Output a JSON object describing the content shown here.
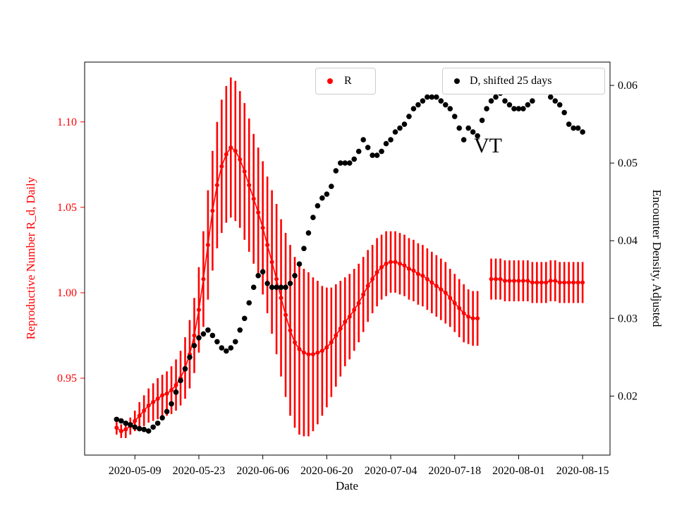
{
  "chart_data": {
    "type": "scatter",
    "title": "",
    "xlabel": "Date",
    "left_ylabel": "Reproductive Number R_d, Daily",
    "right_ylabel": "Encounter Density, Adjusted",
    "left_axis_color": "#ff0000",
    "right_axis_color": "#000000",
    "grid": false,
    "legend_position": "top",
    "annotations": [
      {
        "text": "VT"
      }
    ],
    "x_range": [
      "2020-04-28",
      "2020-08-21"
    ],
    "left_range": [
      0.905,
      1.135
    ],
    "right_range": [
      0.0124,
      0.063
    ],
    "x_ticks": [
      "2020-05-09",
      "2020-05-23",
      "2020-06-06",
      "2020-06-20",
      "2020-07-04",
      "2020-07-18",
      "2020-08-01",
      "2020-08-15"
    ],
    "left_ticks": [
      "0.95",
      "1.00",
      "1.05",
      "1.10"
    ],
    "right_ticks": [
      "0.02",
      "0.03",
      "0.04",
      "0.05",
      "0.06"
    ],
    "legend": [
      {
        "label": "R",
        "color": "#ff0000"
      },
      {
        "label": "D, shifted 25 days",
        "color": "#000000"
      }
    ],
    "dates": [
      "2020-05-05",
      "2020-05-06",
      "2020-05-07",
      "2020-05-08",
      "2020-05-09",
      "2020-05-10",
      "2020-05-11",
      "2020-05-12",
      "2020-05-13",
      "2020-05-14",
      "2020-05-15",
      "2020-05-16",
      "2020-05-17",
      "2020-05-18",
      "2020-05-19",
      "2020-05-20",
      "2020-05-21",
      "2020-05-22",
      "2020-05-23",
      "2020-05-24",
      "2020-05-25",
      "2020-05-26",
      "2020-05-27",
      "2020-05-28",
      "2020-05-29",
      "2020-05-30",
      "2020-05-31",
      "2020-06-01",
      "2020-06-02",
      "2020-06-03",
      "2020-06-04",
      "2020-06-05",
      "2020-06-06",
      "2020-06-07",
      "2020-06-08",
      "2020-06-09",
      "2020-06-10",
      "2020-06-11",
      "2020-06-12",
      "2020-06-13",
      "2020-06-14",
      "2020-06-15",
      "2020-06-16",
      "2020-06-17",
      "2020-06-18",
      "2020-06-19",
      "2020-06-20",
      "2020-06-21",
      "2020-06-22",
      "2020-06-23",
      "2020-06-24",
      "2020-06-25",
      "2020-06-26",
      "2020-06-27",
      "2020-06-28",
      "2020-06-29",
      "2020-06-30",
      "2020-07-01",
      "2020-07-02",
      "2020-07-03",
      "2020-07-04",
      "2020-07-05",
      "2020-07-06",
      "2020-07-07",
      "2020-07-08",
      "2020-07-09",
      "2020-07-10",
      "2020-07-11",
      "2020-07-12",
      "2020-07-13",
      "2020-07-14",
      "2020-07-15",
      "2020-07-16",
      "2020-07-17",
      "2020-07-18",
      "2020-07-19",
      "2020-07-20",
      "2020-07-21",
      "2020-07-22",
      "2020-07-23",
      "2020-07-24",
      "2020-07-25",
      "2020-07-26",
      "2020-07-27",
      "2020-07-28",
      "2020-07-29",
      "2020-07-30",
      "2020-07-31",
      "2020-08-01",
      "2020-08-02",
      "2020-08-03",
      "2020-08-04",
      "2020-08-05",
      "2020-08-06",
      "2020-08-07",
      "2020-08-08",
      "2020-08-09",
      "2020-08-10",
      "2020-08-11",
      "2020-08-12",
      "2020-08-13",
      "2020-08-14",
      "2020-08-15"
    ],
    "series": [
      {
        "name": "R",
        "axis": "left",
        "color": "#ff0000",
        "line": true,
        "values": [
          0.921,
          0.919,
          0.92,
          0.922,
          0.925,
          0.928,
          0.931,
          0.934,
          0.936,
          0.938,
          0.94,
          0.941,
          0.943,
          0.946,
          0.95,
          0.956,
          0.964,
          0.975,
          0.99,
          1.008,
          1.028,
          1.048,
          1.063,
          1.074,
          1.081,
          1.085,
          1.083,
          1.078,
          1.071,
          1.063,
          1.055,
          1.047,
          1.038,
          1.028,
          1.018,
          1.008,
          0.997,
          0.987,
          0.978,
          0.971,
          0.967,
          0.965,
          0.964,
          0.964,
          0.965,
          0.966,
          0.968,
          0.971,
          0.975,
          0.979,
          0.983,
          0.986,
          0.99,
          0.994,
          0.999,
          1.004,
          1.008,
          1.012,
          1.015,
          1.017,
          1.018,
          1.018,
          1.017,
          1.016,
          1.014,
          1.013,
          1.011,
          1.01,
          1.008,
          1.006,
          1.004,
          1.002,
          1.0,
          0.997,
          0.994,
          0.991,
          0.988,
          0.986,
          0.985,
          0.985,
          null,
          null,
          1.008,
          1.008,
          1.008,
          1.007,
          1.007,
          1.007,
          1.007,
          1.007,
          1.007,
          1.006,
          1.006,
          1.006,
          1.006,
          1.007,
          1.007,
          1.006,
          1.006,
          1.006,
          1.006,
          1.006,
          1.006
        ],
        "errors": [
          0.004,
          0.004,
          0.005,
          0.005,
          0.006,
          0.008,
          0.009,
          0.01,
          0.011,
          0.012,
          0.012,
          0.013,
          0.014,
          0.015,
          0.016,
          0.018,
          0.02,
          0.022,
          0.025,
          0.028,
          0.032,
          0.035,
          0.037,
          0.039,
          0.04,
          0.041,
          0.041,
          0.04,
          0.04,
          0.039,
          0.038,
          0.038,
          0.039,
          0.04,
          0.042,
          0.044,
          0.046,
          0.048,
          0.05,
          0.05,
          0.05,
          0.049,
          0.048,
          0.045,
          0.042,
          0.038,
          0.035,
          0.032,
          0.03,
          0.028,
          0.026,
          0.025,
          0.024,
          0.023,
          0.022,
          0.021,
          0.02,
          0.02,
          0.019,
          0.019,
          0.018,
          0.018,
          0.018,
          0.018,
          0.018,
          0.018,
          0.018,
          0.018,
          0.018,
          0.018,
          0.018,
          0.018,
          0.018,
          0.017,
          0.017,
          0.017,
          0.017,
          0.016,
          0.016,
          0.016,
          null,
          null,
          0.012,
          0.012,
          0.012,
          0.012,
          0.012,
          0.012,
          0.012,
          0.012,
          0.012,
          0.012,
          0.012,
          0.012,
          0.012,
          0.012,
          0.012,
          0.012,
          0.012,
          0.012,
          0.012,
          0.012,
          0.012
        ]
      },
      {
        "name": "D, shifted 25 days",
        "axis": "right",
        "color": "#000000",
        "line": false,
        "values": [
          0.017,
          0.0168,
          0.0165,
          0.0163,
          0.016,
          0.0158,
          0.0157,
          0.0155,
          0.016,
          0.0165,
          0.0172,
          0.018,
          0.019,
          0.0205,
          0.022,
          0.0235,
          0.025,
          0.0265,
          0.0275,
          0.028,
          0.0285,
          0.0278,
          0.027,
          0.0262,
          0.0258,
          0.0262,
          0.027,
          0.0285,
          0.03,
          0.032,
          0.034,
          0.0355,
          0.036,
          0.0345,
          0.034,
          0.034,
          0.034,
          0.034,
          0.0345,
          0.0355,
          0.037,
          0.039,
          0.041,
          0.043,
          0.0445,
          0.0455,
          0.046,
          0.047,
          0.049,
          0.05,
          0.05,
          0.05,
          0.0505,
          0.0515,
          0.053,
          0.052,
          0.051,
          0.051,
          0.0515,
          0.0525,
          0.053,
          0.054,
          0.0545,
          0.055,
          0.056,
          0.057,
          0.0575,
          0.058,
          0.0585,
          0.0585,
          0.0585,
          0.058,
          0.0575,
          0.057,
          0.056,
          0.0545,
          0.053,
          0.0545,
          0.054,
          0.0535,
          0.0555,
          0.057,
          0.058,
          0.0585,
          0.059,
          0.058,
          0.0575,
          0.057,
          0.057,
          0.057,
          0.0575,
          0.058,
          0.0595,
          0.06,
          0.0595,
          0.0585,
          0.058,
          0.0575,
          0.0565,
          0.055,
          0.0545,
          0.0545,
          0.054
        ]
      }
    ]
  }
}
